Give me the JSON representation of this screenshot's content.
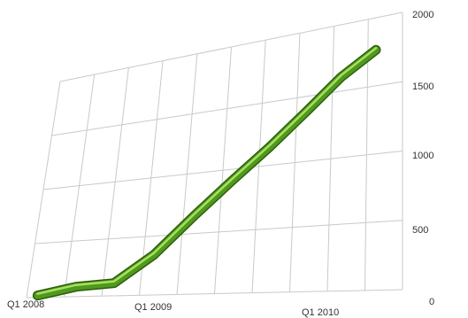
{
  "chart_data": {
    "type": "line",
    "title": "",
    "xlabel": "",
    "ylabel": "",
    "x_tick_labels": [
      "Q1 2008",
      "Q1 2009",
      "Q1 2010"
    ],
    "y_ticks": [
      0,
      500,
      1000,
      1500,
      2000
    ],
    "ylim": [
      0,
      2000
    ],
    "grid": true,
    "series": [
      {
        "color": "#4f9a1c",
        "x": [
          0,
          1,
          2,
          3,
          4,
          5,
          6,
          7,
          8,
          9
        ],
        "values": [
          20,
          90,
          110,
          340,
          640,
          900,
          1130,
          1360,
          1580,
          1730
        ]
      }
    ]
  }
}
